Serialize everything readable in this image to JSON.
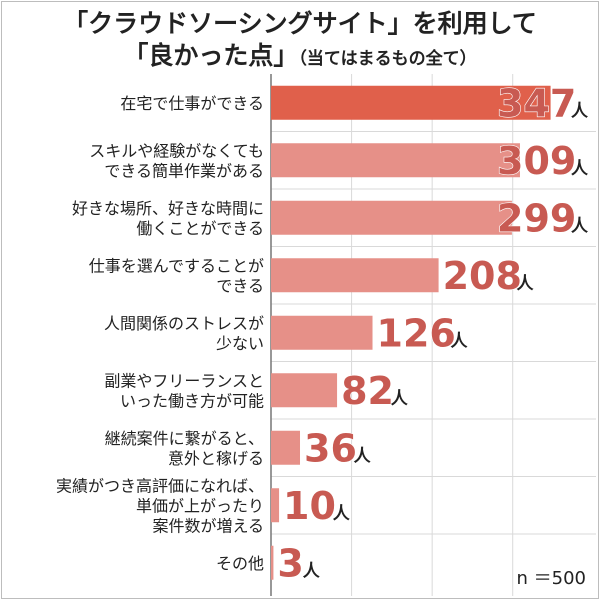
{
  "chart_data": {
    "type": "bar",
    "orientation": "horizontal",
    "title_line1": "「クラウドソーシングサイト」を利用して",
    "title_line2": "「良かった点」",
    "title_note": "（当てはまるもの全て）",
    "categories": [
      [
        "在宅で仕事ができる"
      ],
      [
        "スキルや経験がなくても",
        "できる簡単作業がある"
      ],
      [
        "好きな場所、好きな時間に",
        "働くことができる"
      ],
      [
        "仕事を選んですることが",
        "できる"
      ],
      [
        "人間関係のストレスが",
        "少ない"
      ],
      [
        "副業やフリーランスと",
        "いった働き方が可能"
      ],
      [
        "継続案件に繋がると、",
        "意外と稼げる"
      ],
      [
        "実績がつき高評価になれば、",
        "単価が上がったり",
        "案件数が増える"
      ],
      [
        "その他"
      ]
    ],
    "values": [
      347,
      309,
      299,
      208,
      126,
      82,
      36,
      10,
      3
    ],
    "unit": "人",
    "xlim": [
      0,
      350
    ],
    "sample_size": "n ＝500",
    "colors": {
      "highlight": "#e0604b",
      "bar": "#e69088",
      "value_fill": "#c85a52",
      "axis": "#777777",
      "grid": "#d9d9d9"
    }
  }
}
